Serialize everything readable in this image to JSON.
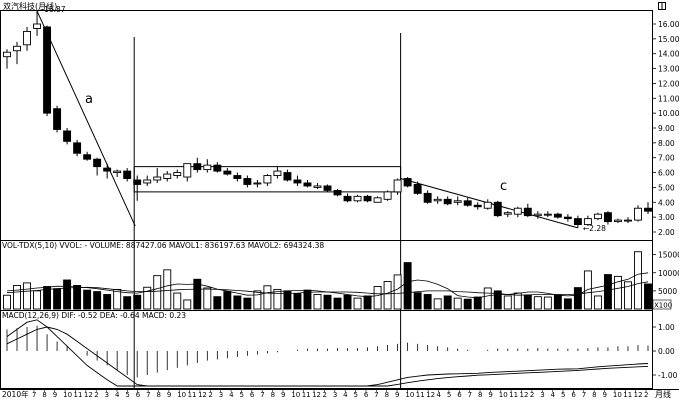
{
  "window": {
    "title": "双汽科技(月线)",
    "period_label": "月线"
  },
  "chart_data": {
    "type": "candlestick",
    "title": "双汽科技(月线)",
    "price_ticks": [
      16.0,
      15.0,
      14.0,
      13.0,
      12.0,
      11.0,
      10.0,
      9.0,
      8.0,
      7.0,
      6.0,
      5.0,
      4.0,
      3.0,
      2.0
    ],
    "price_tick_labels": [
      "16.00",
      "15.00",
      "14.00",
      "13.00",
      "12.00",
      "11.00",
      "10.00",
      "9.00",
      "8.00",
      "7.00",
      "6.00",
      "5.00",
      "4.00",
      "3.00",
      "2.00"
    ],
    "candles": [
      {
        "o": 13.8,
        "h": 14.3,
        "l": 13.0,
        "c": 14.1
      },
      {
        "o": 14.2,
        "h": 14.8,
        "l": 13.3,
        "c": 14.5
      },
      {
        "o": 14.6,
        "h": 15.8,
        "l": 14.2,
        "c": 15.5
      },
      {
        "o": 15.7,
        "h": 16.87,
        "l": 15.2,
        "c": 16.0
      },
      {
        "o": 15.8,
        "h": 15.9,
        "l": 9.8,
        "c": 10.0
      },
      {
        "o": 10.3,
        "h": 10.5,
        "l": 8.7,
        "c": 8.9
      },
      {
        "o": 8.8,
        "h": 9.0,
        "l": 7.9,
        "c": 8.1
      },
      {
        "o": 8.0,
        "h": 8.2,
        "l": 7.1,
        "c": 7.3
      },
      {
        "o": 7.2,
        "h": 7.4,
        "l": 6.8,
        "c": 6.9
      },
      {
        "o": 6.9,
        "h": 7.0,
        "l": 5.8,
        "c": 6.4
      },
      {
        "o": 6.3,
        "h": 6.6,
        "l": 5.6,
        "c": 6.1
      },
      {
        "o": 6.0,
        "h": 6.2,
        "l": 5.7,
        "c": 6.1
      },
      {
        "o": 6.1,
        "h": 6.3,
        "l": 5.4,
        "c": 5.6
      },
      {
        "o": 5.5,
        "h": 5.8,
        "l": 4.1,
        "c": 5.2
      },
      {
        "o": 5.3,
        "h": 5.8,
        "l": 5.1,
        "c": 5.5
      },
      {
        "o": 5.5,
        "h": 6.3,
        "l": 5.3,
        "c": 5.7
      },
      {
        "o": 5.6,
        "h": 6.1,
        "l": 5.4,
        "c": 5.9
      },
      {
        "o": 5.8,
        "h": 6.2,
        "l": 5.6,
        "c": 6.0
      },
      {
        "o": 5.7,
        "h": 6.6,
        "l": 5.4,
        "c": 6.6
      },
      {
        "o": 6.6,
        "h": 7.0,
        "l": 6.0,
        "c": 6.2
      },
      {
        "o": 6.2,
        "h": 6.9,
        "l": 6.0,
        "c": 6.5
      },
      {
        "o": 6.5,
        "h": 6.7,
        "l": 6.0,
        "c": 6.1
      },
      {
        "o": 6.1,
        "h": 6.3,
        "l": 5.8,
        "c": 5.9
      },
      {
        "o": 5.8,
        "h": 6.0,
        "l": 5.4,
        "c": 5.6
      },
      {
        "o": 5.6,
        "h": 5.8,
        "l": 5.0,
        "c": 5.2
      },
      {
        "o": 5.3,
        "h": 5.5,
        "l": 5.0,
        "c": 5.3
      },
      {
        "o": 5.3,
        "h": 5.9,
        "l": 5.1,
        "c": 5.8
      },
      {
        "o": 5.8,
        "h": 6.4,
        "l": 5.6,
        "c": 6.1
      },
      {
        "o": 6.0,
        "h": 6.2,
        "l": 5.4,
        "c": 5.5
      },
      {
        "o": 5.5,
        "h": 5.8,
        "l": 5.1,
        "c": 5.3
      },
      {
        "o": 5.3,
        "h": 5.5,
        "l": 5.0,
        "c": 5.1
      },
      {
        "o": 5.0,
        "h": 5.3,
        "l": 4.9,
        "c": 5.1
      },
      {
        "o": 5.1,
        "h": 5.2,
        "l": 4.7,
        "c": 4.8
      },
      {
        "o": 4.8,
        "h": 4.9,
        "l": 4.4,
        "c": 4.5
      },
      {
        "o": 4.4,
        "h": 4.6,
        "l": 4.0,
        "c": 4.1
      },
      {
        "o": 4.1,
        "h": 4.5,
        "l": 4.0,
        "c": 4.4
      },
      {
        "o": 4.4,
        "h": 4.5,
        "l": 4.0,
        "c": 4.1
      },
      {
        "o": 4.0,
        "h": 4.4,
        "l": 4.0,
        "c": 4.3
      },
      {
        "o": 4.2,
        "h": 4.8,
        "l": 4.1,
        "c": 4.7
      },
      {
        "o": 4.7,
        "h": 5.6,
        "l": 4.5,
        "c": 5.5
      },
      {
        "o": 5.6,
        "h": 5.7,
        "l": 5.0,
        "c": 5.1
      },
      {
        "o": 5.2,
        "h": 5.4,
        "l": 4.5,
        "c": 4.6
      },
      {
        "o": 4.6,
        "h": 4.8,
        "l": 3.9,
        "c": 4.0
      },
      {
        "o": 4.1,
        "h": 4.4,
        "l": 3.9,
        "c": 4.2
      },
      {
        "o": 4.2,
        "h": 4.4,
        "l": 3.8,
        "c": 3.9
      },
      {
        "o": 4.0,
        "h": 4.4,
        "l": 3.8,
        "c": 4.1
      },
      {
        "o": 4.1,
        "h": 4.3,
        "l": 3.7,
        "c": 3.8
      },
      {
        "o": 3.8,
        "h": 4.0,
        "l": 3.5,
        "c": 3.7
      },
      {
        "o": 3.6,
        "h": 4.2,
        "l": 3.5,
        "c": 4.0
      },
      {
        "o": 4.0,
        "h": 4.1,
        "l": 3.0,
        "c": 3.1
      },
      {
        "o": 3.2,
        "h": 3.4,
        "l": 3.0,
        "c": 3.3
      },
      {
        "o": 3.2,
        "h": 3.7,
        "l": 3.0,
        "c": 3.6
      },
      {
        "o": 3.6,
        "h": 3.9,
        "l": 3.0,
        "c": 3.1
      },
      {
        "o": 3.1,
        "h": 3.4,
        "l": 2.9,
        "c": 3.2
      },
      {
        "o": 3.2,
        "h": 3.4,
        "l": 3.0,
        "c": 3.2
      },
      {
        "o": 3.2,
        "h": 3.3,
        "l": 2.9,
        "c": 3.0
      },
      {
        "o": 3.0,
        "h": 3.2,
        "l": 2.7,
        "c": 2.9
      },
      {
        "o": 2.9,
        "h": 3.1,
        "l": 2.28,
        "c": 2.5
      },
      {
        "o": 2.5,
        "h": 3.1,
        "l": 2.4,
        "c": 2.9
      },
      {
        "o": 2.9,
        "h": 3.3,
        "l": 2.8,
        "c": 3.2
      },
      {
        "o": 3.3,
        "h": 3.4,
        "l": 2.5,
        "c": 2.7
      },
      {
        "o": 2.7,
        "h": 2.9,
        "l": 2.6,
        "c": 2.8
      },
      {
        "o": 2.8,
        "h": 3.0,
        "l": 2.6,
        "c": 2.8
      },
      {
        "o": 2.8,
        "h": 3.8,
        "l": 2.7,
        "c": 3.6
      },
      {
        "o": 3.6,
        "h": 4.0,
        "l": 3.2,
        "c": 3.4
      }
    ],
    "annotations": {
      "high_label": "16.87",
      "low_label": "2.28",
      "label_a": "a",
      "label_c": "c",
      "box_range": [
        4.7,
        6.4
      ]
    },
    "volume": {
      "header": "VOL-TDX(5,10)  VVOL: -  VOLUME: 887427.06  MAVOL1: 836197.63  MAVOL2: 694324.38",
      "ticks": [
        15000,
        10000,
        5000
      ],
      "tick_labels": [
        "15000",
        "10000",
        "5000"
      ],
      "unit_label": "X100",
      "values": [
        3800,
        6500,
        7200,
        5000,
        6200,
        5600,
        8000,
        6500,
        5200,
        4800,
        4000,
        5400,
        3400,
        3800,
        6000,
        9200,
        10800,
        4400,
        2500,
        8200,
        5800,
        3400,
        4800,
        3600,
        3000,
        5000,
        6400,
        5400,
        5000,
        4200,
        5200,
        4000,
        3800,
        3000,
        3800,
        3000,
        3600,
        6200,
        7600,
        9400,
        12800,
        4500,
        4000,
        2800,
        3600,
        3000,
        2700,
        3300,
        5800,
        5000,
        3600,
        4400,
        3800,
        3400,
        3300,
        3900,
        2800,
        5900,
        10500,
        3600,
        9500,
        9000,
        7500,
        15800,
        6900
      ],
      "ma5": [
        5000,
        5200,
        5500,
        5800,
        6000,
        6300,
        6200,
        6100,
        5900,
        5600,
        5200,
        4800,
        4500,
        4400,
        4900,
        5600,
        6400,
        6900,
        6800,
        6900,
        6300,
        5500,
        4900,
        4400,
        3800,
        3900,
        4500,
        4800,
        5000,
        5100,
        5200,
        5000,
        4700,
        4400,
        4000,
        3600,
        3400,
        3700,
        4400,
        5500,
        7500,
        8000,
        7700,
        6800,
        5600,
        3700,
        3300,
        3100,
        3600,
        4000,
        4000,
        4300,
        4700,
        4700,
        4300,
        3800,
        3600,
        3800,
        5400,
        6000,
        6600,
        7500,
        8200,
        9600,
        10000
      ],
      "ma10": [
        4500,
        4700,
        4900,
        5100,
        5400,
        5600,
        5800,
        5900,
        6000,
        5900,
        5600,
        5300,
        5000,
        4800,
        4800,
        4900,
        5100,
        5300,
        5400,
        5500,
        5500,
        5400,
        5300,
        5100,
        4900,
        4600,
        4400,
        4300,
        4300,
        4400,
        4600,
        4700,
        4700,
        4700,
        4700,
        4600,
        4400,
        4200,
        4200,
        4300,
        4500,
        4800,
        5000,
        5000,
        5000,
        4800,
        4700,
        4500,
        4400,
        4300,
        4000,
        3800,
        3900,
        4000,
        4000,
        4000,
        4000,
        4100,
        4500,
        4800,
        5200,
        5700,
        6200,
        7000,
        7500
      ]
    },
    "macd": {
      "header": "MACD(12,26,9)  DIF: -0.52  DEA: -0.64  MACD: 0.23",
      "ticks": [
        1.0,
        0.0,
        -1.0
      ],
      "tick_labels": [
        "1.00",
        "0.00",
        "-1.00"
      ],
      "hist": [
        0.9,
        0.95,
        1.0,
        1.05,
        0.7,
        0.4,
        0.2,
        0.0,
        -0.2,
        -0.4,
        -0.6,
        -0.8,
        -1.0,
        -1.1,
        -1.0,
        -0.9,
        -0.8,
        -0.7,
        -0.6,
        -0.5,
        -0.4,
        -0.35,
        -0.3,
        -0.25,
        -0.2,
        -0.15,
        -0.1,
        -0.05,
        0.0,
        0.05,
        0.1,
        0.1,
        0.1,
        0.12,
        0.12,
        0.12,
        0.15,
        0.2,
        0.25,
        0.3,
        0.35,
        0.3,
        0.25,
        0.2,
        0.15,
        0.1,
        0.05,
        0.0,
        0.05,
        0.1,
        0.1,
        0.1,
        0.1,
        0.12,
        0.1,
        0.1,
        0.1,
        0.1,
        0.12,
        0.15,
        0.15,
        0.2,
        0.2,
        0.25,
        0.23
      ],
      "dif": [
        0.6,
        0.9,
        1.2,
        1.3,
        1.0,
        0.6,
        0.2,
        -0.2,
        -0.6,
        -0.9,
        -1.2,
        -1.5,
        -1.8,
        -2.0,
        -2.15,
        -2.25,
        -2.3,
        -2.35,
        -2.35,
        -2.3,
        -2.25,
        -2.2,
        -2.15,
        -2.1,
        -2.05,
        -2.0,
        -1.95,
        -1.9,
        -1.85,
        -1.8,
        -1.75,
        -1.7,
        -1.65,
        -1.6,
        -1.55,
        -1.5,
        -1.45,
        -1.4,
        -1.3,
        -1.2,
        -1.1,
        -1.05,
        -1.0,
        -0.98,
        -0.96,
        -0.95,
        -0.94,
        -0.93,
        -0.9,
        -0.88,
        -0.86,
        -0.84,
        -0.82,
        -0.8,
        -0.78,
        -0.76,
        -0.75,
        -0.74,
        -0.7,
        -0.66,
        -0.63,
        -0.6,
        -0.57,
        -0.54,
        -0.52
      ],
      "dea": [
        0.3,
        0.5,
        0.7,
        0.9,
        1.0,
        0.9,
        0.7,
        0.4,
        0.1,
        -0.2,
        -0.5,
        -0.8,
        -1.1,
        -1.4,
        -1.6,
        -1.8,
        -1.95,
        -2.05,
        -2.12,
        -2.16,
        -2.18,
        -2.18,
        -2.17,
        -2.15,
        -2.12,
        -2.09,
        -2.05,
        -2.01,
        -1.97,
        -1.93,
        -1.88,
        -1.83,
        -1.78,
        -1.73,
        -1.68,
        -1.63,
        -1.58,
        -1.52,
        -1.46,
        -1.39,
        -1.32,
        -1.26,
        -1.2,
        -1.15,
        -1.11,
        -1.07,
        -1.04,
        -1.01,
        -0.99,
        -0.97,
        -0.95,
        -0.93,
        -0.91,
        -0.89,
        -0.87,
        -0.85,
        -0.83,
        -0.81,
        -0.78,
        -0.75,
        -0.72,
        -0.7,
        -0.68,
        -0.66,
        -0.64
      ]
    },
    "x_axis": {
      "year_label": "2010年",
      "tick_labels": [
        "7",
        "8",
        "9",
        "10",
        "11",
        "12",
        "2",
        "3",
        "4",
        "5",
        "6",
        "7",
        "8",
        "9",
        "10",
        "11",
        "12",
        "2",
        "3",
        "4",
        "5",
        "6",
        "7",
        "8",
        "9",
        "10",
        "11",
        "12",
        "2",
        "3",
        "4",
        "5",
        "6",
        "7",
        "8",
        "9",
        "10",
        "11",
        "12",
        "4",
        "5",
        "6",
        "7",
        "8",
        "9",
        "10",
        "11",
        "12",
        "2",
        "3",
        "4",
        "5",
        "6",
        "7",
        "8",
        "9",
        "10",
        "11",
        "12",
        "2"
      ],
      "period_label": "月线"
    }
  }
}
